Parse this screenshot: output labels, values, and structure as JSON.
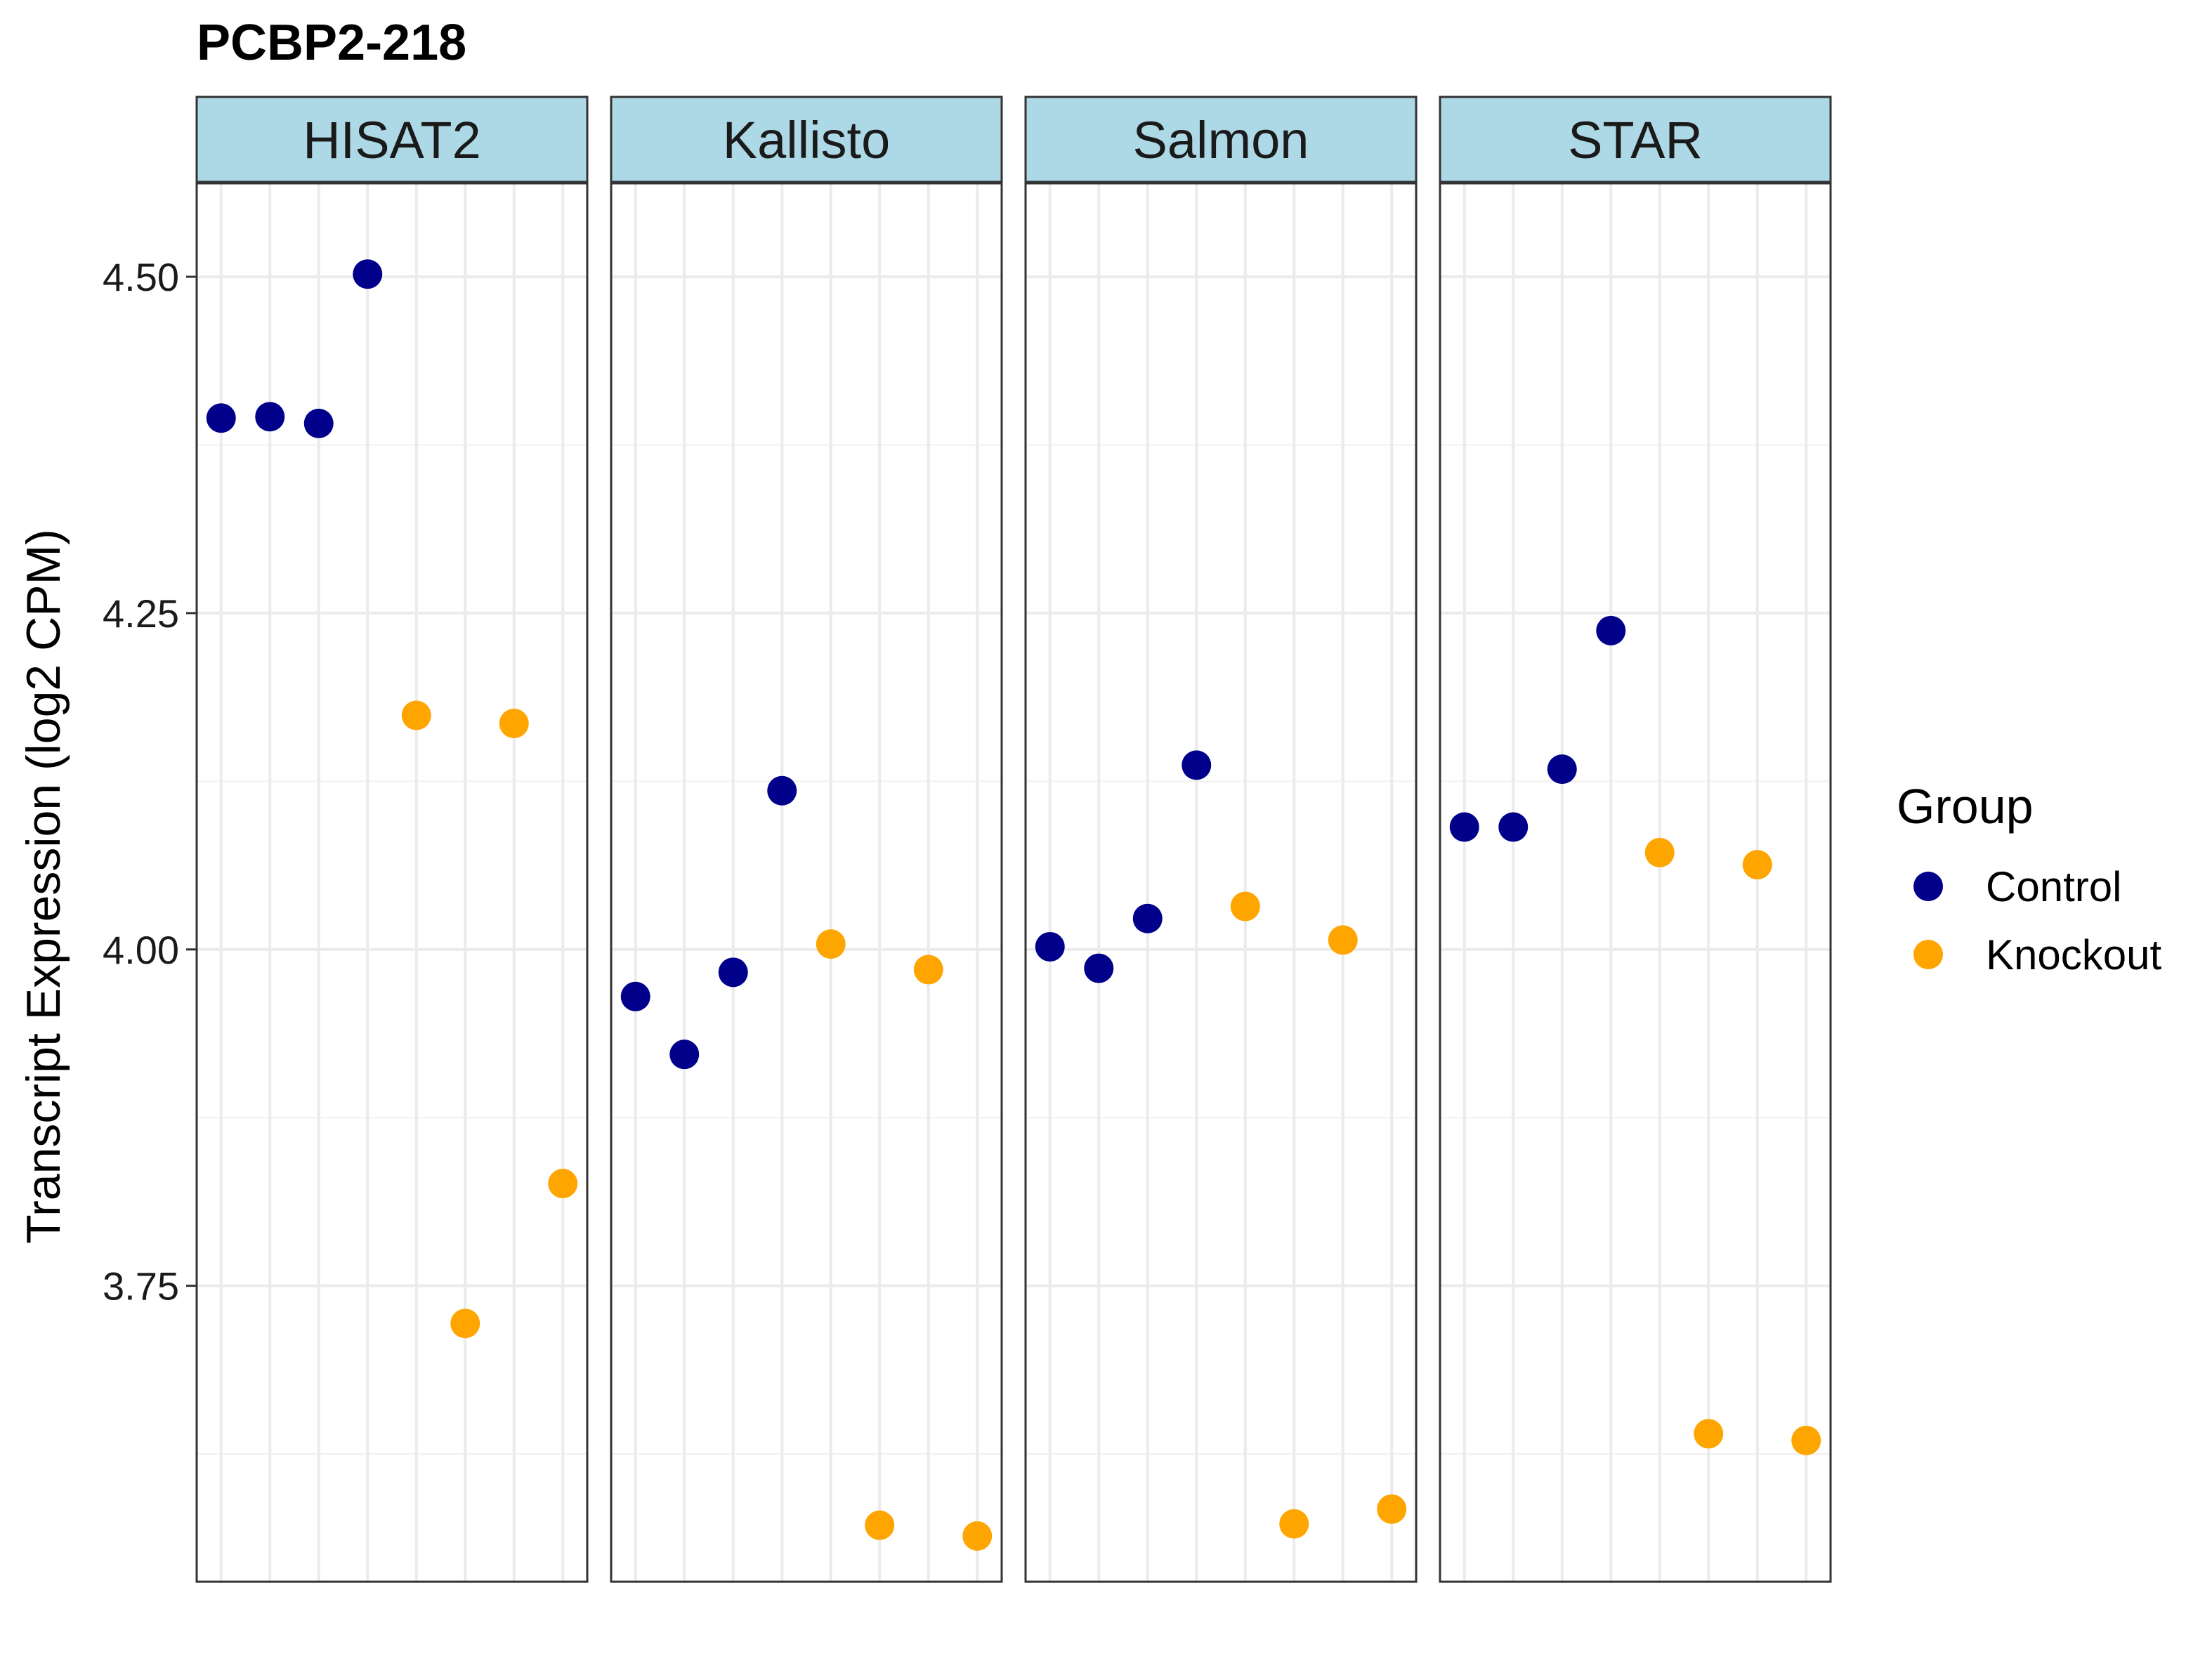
{
  "chart_data": {
    "type": "scatter",
    "title": "PCBP2-218",
    "ylabel": "Transcript Expression (log2 CPM)",
    "xlabel": "",
    "ylim": [
      3.53,
      4.57
    ],
    "yticks": [
      3.75,
      4.0,
      4.25,
      4.5
    ],
    "ytick_labels": [
      "3.75",
      "4.00",
      "4.25",
      "4.50"
    ],
    "n_samples": 8,
    "grid": true,
    "facet_strip_color": "#add8e6",
    "legend": {
      "title": "Group",
      "placement": "right",
      "entries": [
        {
          "name": "Control",
          "color": "#00008b"
        },
        {
          "name": "Knockout",
          "color": "#ffa500"
        }
      ]
    },
    "panels": [
      {
        "name": "HISAT2",
        "points": [
          {
            "x": 1,
            "y": 4.395,
            "group": "Control"
          },
          {
            "x": 2,
            "y": 4.396,
            "group": "Control"
          },
          {
            "x": 3,
            "y": 4.391,
            "group": "Control"
          },
          {
            "x": 4,
            "y": 4.502,
            "group": "Control"
          },
          {
            "x": 5,
            "y": 4.174,
            "group": "Knockout"
          },
          {
            "x": 6,
            "y": 3.722,
            "group": "Knockout"
          },
          {
            "x": 7,
            "y": 4.168,
            "group": "Knockout"
          },
          {
            "x": 8,
            "y": 3.826,
            "group": "Knockout"
          }
        ]
      },
      {
        "name": "Kallisto",
        "points": [
          {
            "x": 1,
            "y": 3.965,
            "group": "Control"
          },
          {
            "x": 2,
            "y": 3.922,
            "group": "Control"
          },
          {
            "x": 3,
            "y": 3.983,
            "group": "Control"
          },
          {
            "x": 4,
            "y": 4.118,
            "group": "Control"
          },
          {
            "x": 5,
            "y": 4.004,
            "group": "Knockout"
          },
          {
            "x": 6,
            "y": 3.572,
            "group": "Knockout"
          },
          {
            "x": 7,
            "y": 3.985,
            "group": "Knockout"
          },
          {
            "x": 8,
            "y": 3.564,
            "group": "Knockout"
          }
        ]
      },
      {
        "name": "Salmon",
        "points": [
          {
            "x": 1,
            "y": 4.002,
            "group": "Control"
          },
          {
            "x": 2,
            "y": 3.986,
            "group": "Control"
          },
          {
            "x": 3,
            "y": 4.023,
            "group": "Control"
          },
          {
            "x": 4,
            "y": 4.137,
            "group": "Control"
          },
          {
            "x": 5,
            "y": 4.032,
            "group": "Knockout"
          },
          {
            "x": 6,
            "y": 3.573,
            "group": "Knockout"
          },
          {
            "x": 7,
            "y": 4.007,
            "group": "Knockout"
          },
          {
            "x": 8,
            "y": 3.584,
            "group": "Knockout"
          }
        ]
      },
      {
        "name": "STAR",
        "points": [
          {
            "x": 1,
            "y": 4.091,
            "group": "Control"
          },
          {
            "x": 2,
            "y": 4.091,
            "group": "Control"
          },
          {
            "x": 3,
            "y": 4.134,
            "group": "Control"
          },
          {
            "x": 4,
            "y": 4.237,
            "group": "Control"
          },
          {
            "x": 5,
            "y": 4.072,
            "group": "Knockout"
          },
          {
            "x": 6,
            "y": 3.64,
            "group": "Knockout"
          },
          {
            "x": 7,
            "y": 4.063,
            "group": "Knockout"
          },
          {
            "x": 8,
            "y": 3.635,
            "group": "Knockout"
          }
        ]
      }
    ]
  }
}
